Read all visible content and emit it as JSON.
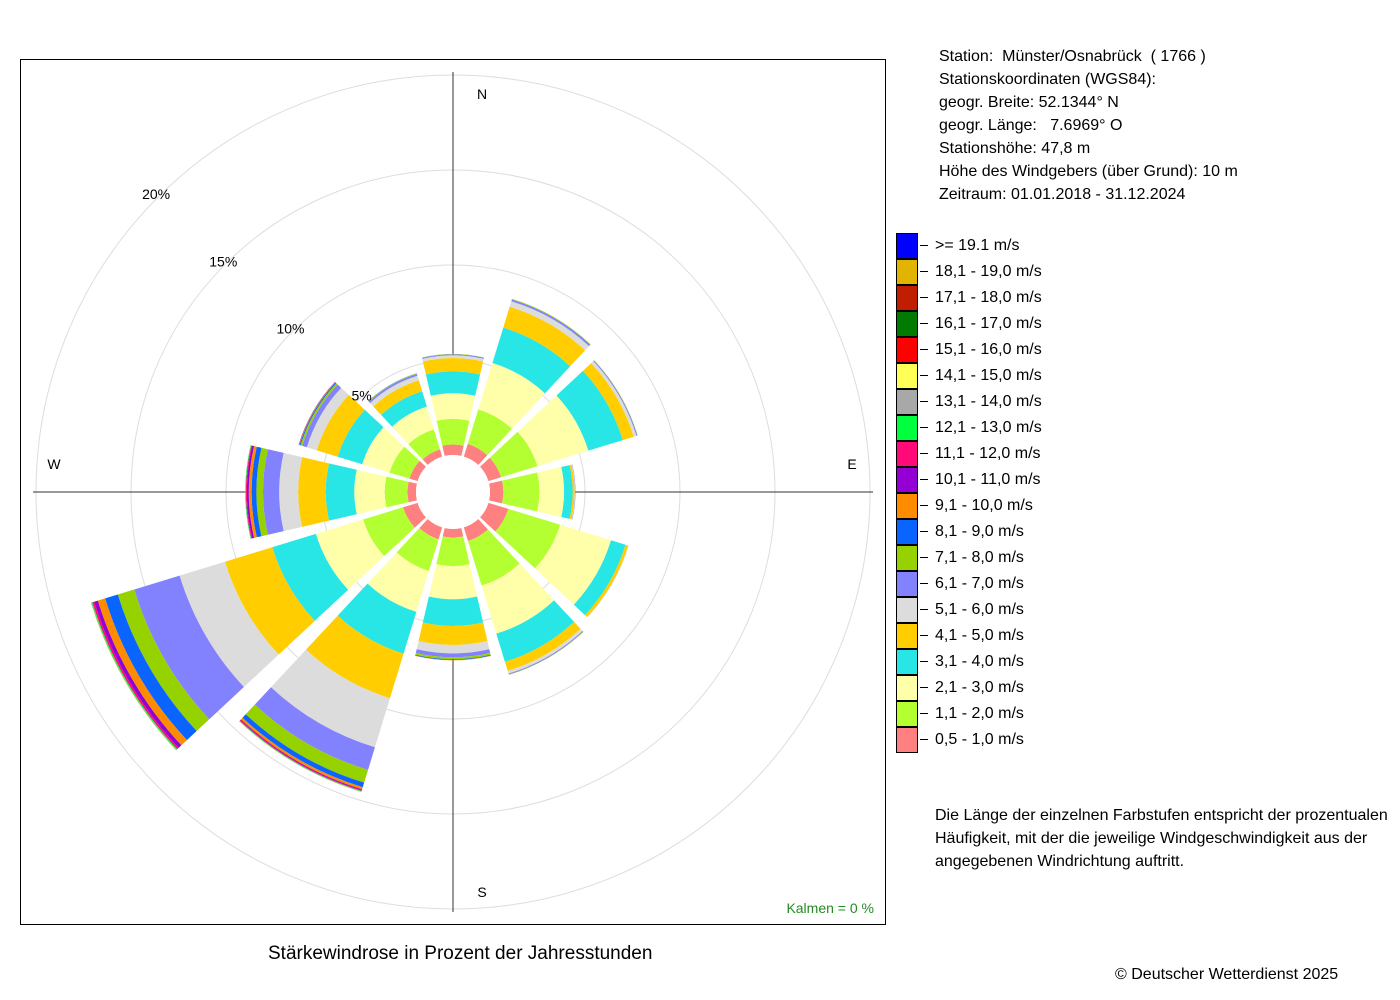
{
  "station": {
    "name_line": "Station:  Münster/Osnabrück  ( 1766 )",
    "coords_heading": "Stationskoordinaten (WGS84):",
    "lat_line": "geogr. Breite: 52.1344° N",
    "lon_line": "geogr. Länge:   7.6969° O",
    "height_line": "Stationshöhe: 47,8 m",
    "sensor_line": "Höhe des Windgebers (über Grund): 10 m",
    "period_line": "Zeitraum: 01.01.2018 - 31.12.2024"
  },
  "note": {
    "line1": "Die Länge der einzelnen Farbstufen entspricht der prozentualen",
    "line2": "Häufigkeit, mit der die jeweilige Windgeschwindigkeit aus der",
    "line3": "angegebenen Windrichtung auftritt."
  },
  "copyright": "© Deutscher Wetterdienst  2025",
  "chart_data": {
    "type": "windrose",
    "title": "Stärkewindrose in Prozent der Jahresstunden",
    "calm_label": "Kalmen  =  0 %",
    "calm_color": "#228b22",
    "compass": [
      "N",
      "E",
      "S",
      "W"
    ],
    "ring_labels": [
      "5%",
      "10%",
      "15%",
      "20%"
    ],
    "rings": [
      5,
      10,
      15,
      20
    ],
    "directions_deg": [
      0,
      30,
      60,
      90,
      120,
      150,
      180,
      210,
      240,
      270,
      300,
      330
    ],
    "legend": [
      {
        "label": ">= 19.1 m/s",
        "color": "#0000ff"
      },
      {
        "label": "18,1 - 19,0 m/s",
        "color": "#e0b400"
      },
      {
        "label": "17,1 - 18,0 m/s",
        "color": "#c01e00"
      },
      {
        "label": "16,1 - 17,0 m/s",
        "color": "#007a00"
      },
      {
        "label": "15,1 - 16,0 m/s",
        "color": "#ff0000"
      },
      {
        "label": "14,1 - 15,0 m/s",
        "color": "#ffff55"
      },
      {
        "label": "13,1 - 14,0 m/s",
        "color": "#a8a8a8"
      },
      {
        "label": "12,1 - 13,0 m/s",
        "color": "#00ff3c"
      },
      {
        "label": "11,1 - 12,0 m/s",
        "color": "#ff0a78"
      },
      {
        "label": "10,1 - 11,0 m/s",
        "color": "#9400d3"
      },
      {
        "label": "9,1 - 10,0 m/s",
        "color": "#ff8c00"
      },
      {
        "label": "8,1 - 9,0 m/s",
        "color": "#0a64ff"
      },
      {
        "label": "7,1 - 8,0 m/s",
        "color": "#96d200"
      },
      {
        "label": "6,1 - 7,0 m/s",
        "color": "#8282ff"
      },
      {
        "label": "5,1 - 6,0 m/s",
        "color": "#dcdcdc"
      },
      {
        "label": "4,1 - 5,0 m/s",
        "color": "#ffcd00"
      },
      {
        "label": "3,1 - 4,0 m/s",
        "color": "#28e6e6"
      },
      {
        "label": "2,1 - 3,0 m/s",
        "color": "#ffffaa"
      },
      {
        "label": "1,1 - 2,0 m/s",
        "color": "#b4ff32"
      },
      {
        "label": "0,5 - 1,0 m/s",
        "color": "#ff8080"
      }
    ],
    "series_order_note_free": true,
    "bands": [
      {
        "direction": 0,
        "values": [
          0.55,
          1.35,
          1.35,
          1.15,
          0.7,
          0.15,
          0.05,
          0.02,
          0,
          0,
          0,
          0,
          0,
          0,
          0,
          0,
          0,
          0,
          0,
          0
        ]
      },
      {
        "direction": 30,
        "values": [
          0.7,
          1.9,
          2.55,
          1.95,
          1.15,
          0.3,
          0.1,
          0.03,
          0,
          0,
          0,
          0,
          0,
          0,
          0,
          0,
          0,
          0,
          0,
          0
        ]
      },
      {
        "direction": 60,
        "values": [
          0.7,
          2.0,
          2.8,
          1.9,
          0.6,
          0.15,
          0.05,
          0.02,
          0,
          0,
          0,
          0,
          0,
          0,
          0,
          0,
          0,
          0,
          0,
          0
        ]
      },
      {
        "direction": 90,
        "values": [
          0.7,
          1.9,
          1.3,
          0.45,
          0.1,
          0.03,
          0.02,
          0,
          0,
          0,
          0,
          0,
          0,
          0,
          0,
          0,
          0,
          0,
          0,
          0
        ]
      },
      {
        "direction": 120,
        "values": [
          1.1,
          2.85,
          2.8,
          0.8,
          0.15,
          0.03,
          0,
          0,
          0,
          0,
          0,
          0,
          0,
          0,
          0,
          0,
          0,
          0,
          0,
          0
        ]
      },
      {
        "direction": 150,
        "values": [
          0.75,
          2.45,
          2.65,
          1.55,
          0.5,
          0.15,
          0.05,
          0.02,
          0,
          0,
          0,
          0,
          0,
          0,
          0,
          0,
          0,
          0,
          0,
          0
        ]
      },
      {
        "direction": 180,
        "values": [
          0.45,
          1.5,
          1.75,
          1.4,
          1.0,
          0.45,
          0.2,
          0.1,
          0.04,
          0.02,
          0,
          0,
          0,
          0,
          0,
          0,
          0,
          0,
          0,
          0
        ]
      },
      {
        "direction": 210,
        "values": [
          0.65,
          1.75,
          2.25,
          2.3,
          2.45,
          2.7,
          1.25,
          0.7,
          0.25,
          0.12,
          0.05,
          0.04,
          0.03,
          0.02,
          0.01,
          0,
          0,
          0,
          0,
          0
        ]
      },
      {
        "direction": 240,
        "values": [
          0.8,
          2.2,
          2.6,
          2.4,
          2.6,
          2.5,
          2.5,
          0.9,
          0.7,
          0.4,
          0.2,
          0.1,
          0.05,
          0.03,
          0.02,
          0,
          0,
          0,
          0,
          0
        ]
      },
      {
        "direction": 270,
        "values": [
          0.45,
          1.2,
          1.6,
          1.5,
          1.45,
          1.0,
          0.85,
          0.35,
          0.25,
          0.15,
          0.1,
          0.05,
          0.03,
          0.01,
          0,
          0,
          0,
          0,
          0,
          0
        ]
      },
      {
        "direction": 300,
        "values": [
          0.45,
          1.1,
          1.5,
          1.35,
          1.15,
          0.55,
          0.25,
          0.1,
          0.05,
          0.03,
          0.02,
          0,
          0,
          0,
          0,
          0,
          0,
          0,
          0,
          0
        ]
      },
      {
        "direction": 330,
        "values": [
          0.4,
          1.1,
          1.25,
          0.85,
          0.6,
          0.25,
          0.1,
          0.03,
          0.01,
          0,
          0,
          0,
          0,
          0,
          0,
          0,
          0,
          0,
          0,
          0
        ]
      }
    ],
    "calm_pct": 0
  }
}
